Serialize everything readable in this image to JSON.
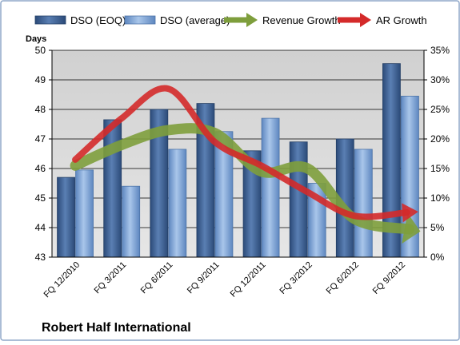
{
  "chart_data": {
    "type": "bar",
    "title": "Robert Half International",
    "y_axis_label": "Days",
    "categories": [
      "FQ 12/2010",
      "FQ 3/2011",
      "FQ 6/2011",
      "FQ 9/2011",
      "FQ 12/2011",
      "FQ 3/2012",
      "FQ 6/2012",
      "FQ 9/2012"
    ],
    "series": [
      {
        "name": "DSO (EOQ)",
        "type": "bar",
        "axis": "left",
        "values": [
          45.7,
          47.65,
          48.0,
          48.2,
          46.6,
          46.9,
          47.0,
          49.55
        ]
      },
      {
        "name": "DSO (average)",
        "type": "bar",
        "axis": "left",
        "values": [
          45.95,
          45.4,
          46.65,
          47.25,
          47.7,
          45.5,
          46.65,
          48.45
        ]
      },
      {
        "name": "Revenue Growth",
        "type": "line",
        "axis": "right",
        "values": [
          15.5,
          19.0,
          21.5,
          21.0,
          14.5,
          15.0,
          6.5,
          5.0
        ]
      },
      {
        "name": "AR Growth",
        "type": "line",
        "axis": "right",
        "values": [
          16.5,
          23.5,
          28.5,
          19.5,
          15.5,
          11.0,
          7.0,
          7.5
        ]
      }
    ],
    "y_left": {
      "min": 43,
      "max": 50,
      "step": 1,
      "ticks": [
        "43",
        "44",
        "45",
        "46",
        "47",
        "48",
        "49",
        "50"
      ]
    },
    "y_right": {
      "min": 0,
      "max": 35,
      "step": 5,
      "ticks": [
        "0%",
        "5%",
        "10%",
        "15%",
        "20%",
        "25%",
        "30%",
        "35%"
      ]
    },
    "grid": true,
    "legend_position": "top",
    "colors": {
      "dso_eoq": "#3a5f93",
      "dso_avg": "#7fa6d6",
      "revenue_growth": "#7e9e3c",
      "ar_growth": "#d42a2a",
      "plot_background": "#d9d9d9",
      "border": "#8fa7c8"
    }
  }
}
